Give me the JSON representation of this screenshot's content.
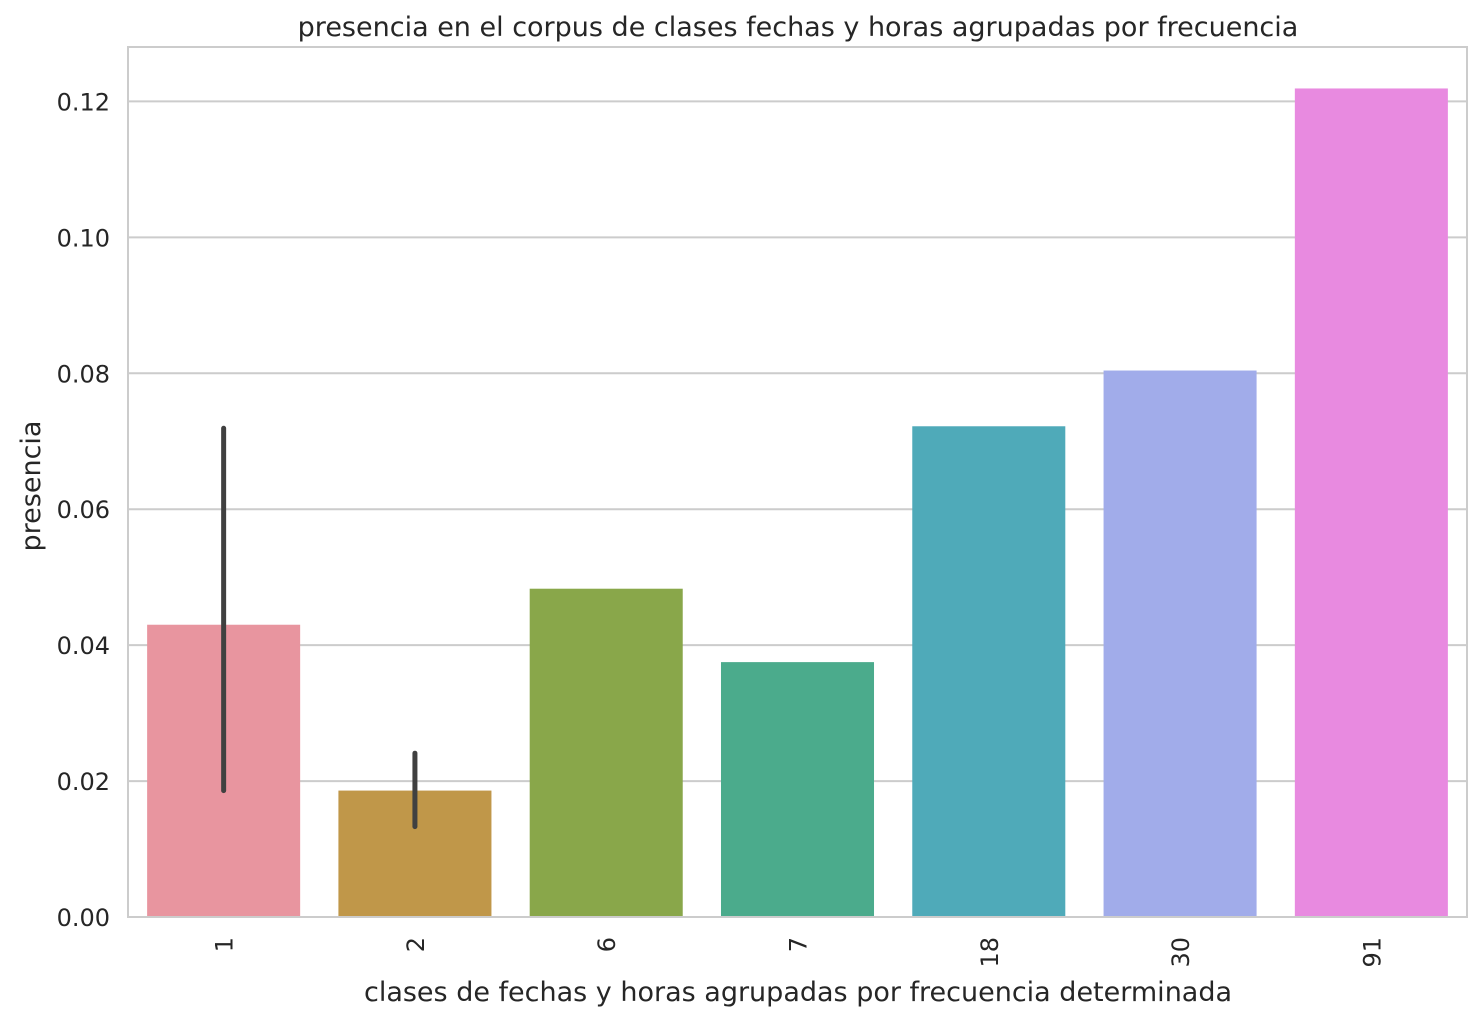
{
  "chart_data": {
    "type": "bar",
    "title": "presencia en el corpus de clases fechas y horas agrupadas por frecuencia",
    "xlabel": "clases de fechas y horas agrupadas por frecuencia determinada",
    "ylabel": "presencia",
    "categories": [
      "1",
      "2",
      "6",
      "7",
      "18",
      "30",
      "91"
    ],
    "values": [
      0.043,
      0.0186,
      0.0483,
      0.0375,
      0.0722,
      0.0804,
      0.1219
    ],
    "error_bars": [
      [
        0.0186,
        0.0719
      ],
      [
        0.0133,
        0.0241
      ],
      null,
      null,
      null,
      null,
      null
    ],
    "colors": [
      "#e8959f",
      "#c09749",
      "#89a74a",
      "#4bab8c",
      "#4faab9",
      "#a1acea",
      "#e88ae0"
    ],
    "ylim": [
      0,
      0.128
    ],
    "yticks": [
      "0.00",
      "0.02",
      "0.04",
      "0.06",
      "0.08",
      "0.10",
      "0.12"
    ],
    "grid": "horizontal",
    "error_bar_color": "#404040"
  }
}
